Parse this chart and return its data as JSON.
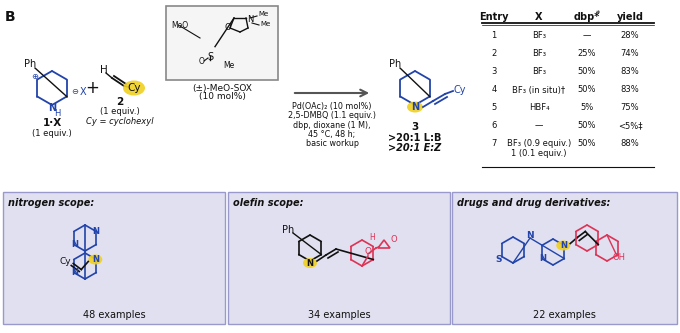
{
  "title_label": "B",
  "table": {
    "headers": [
      "Entry",
      "X",
      "dbp*",
      "yield"
    ],
    "rows": [
      [
        "1",
        "BF₃",
        "—",
        "28%"
      ],
      [
        "2",
        "BF₃",
        "25%",
        "74%"
      ],
      [
        "3",
        "BF₃",
        "50%",
        "83%"
      ],
      [
        "4",
        "BF₃ (in situ)†",
        "50%",
        "83%"
      ],
      [
        "5",
        "HBF₄",
        "5%",
        "75%"
      ],
      [
        "6",
        "—",
        "50%",
        "<5%‡"
      ],
      [
        "7",
        "BF₃ (0.9 equiv.)\n1 (0.1 equiv.)",
        "50%",
        "88%"
      ]
    ]
  },
  "reaction_conditions": [
    "Pd(OAc)₂ (10 mol%)",
    "2,5-DMBQ (1.1 equiv.)",
    "dbp, dioxane (1 M),",
    "45 °C, 48 h;",
    "basic workup"
  ],
  "scope_titles": [
    "nitrogen scope:",
    "olefin scope:",
    "drugs and drug derivatives:"
  ],
  "scope_examples": [
    "48 examples",
    "34 examples",
    "22 examples"
  ],
  "bg_color": "#ffffff",
  "blue_color": "#2244aa",
  "pink_color": "#dd3355",
  "yellow_color": "#f0d020",
  "black": "#111111"
}
